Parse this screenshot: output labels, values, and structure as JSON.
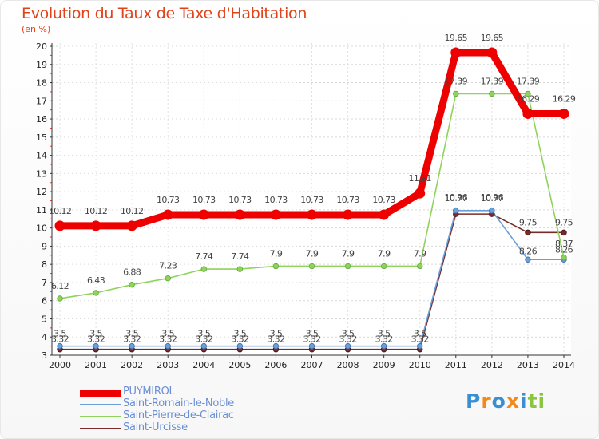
{
  "chart_data": {
    "type": "line",
    "title": "Evolution du Taux de Taxe d'Habitation",
    "ylabel": "(en %)",
    "xlabel": "",
    "ylim": [
      3,
      20
    ],
    "y_ticks": [
      "3",
      "4",
      "5",
      "6",
      "7",
      "8",
      "9",
      "10",
      "11",
      "12",
      "13",
      "14",
      "15",
      "16",
      "17",
      "18",
      "19",
      "20"
    ],
    "x": [
      "2000",
      "2001",
      "2002",
      "2003",
      "2004",
      "2005",
      "2006",
      "2007",
      "2008",
      "2009",
      "2010",
      "2011",
      "2012",
      "2013",
      "2014"
    ],
    "legend_position": "bottom-left",
    "series": [
      {
        "name": "PUYMIROL",
        "color": "#ee0000",
        "values": [
          10.12,
          10.12,
          10.12,
          10.73,
          10.73,
          10.73,
          10.73,
          10.73,
          10.73,
          10.73,
          11.91,
          19.65,
          19.65,
          16.29,
          16.29
        ],
        "labels": [
          "10.12",
          "10.12",
          "10.12",
          "10.73",
          "10.73",
          "10.73",
          "10.73",
          "10.73",
          "10.73",
          "10.73",
          "11.91",
          "19.65",
          "19.65",
          "16.29",
          "16.29"
        ]
      },
      {
        "name": "Saint-Romain-le-Noble",
        "color": "#6b9fd6",
        "values": [
          3.5,
          3.5,
          3.5,
          3.5,
          3.5,
          3.5,
          3.5,
          3.5,
          3.5,
          3.5,
          3.5,
          10.96,
          10.96,
          8.26,
          8.26
        ],
        "labels": [
          "3.5",
          "3.5",
          "3.5",
          "3.5",
          "3.5",
          "3.5",
          "3.5",
          "3.5",
          "3.5",
          "3.5",
          "3.5",
          "10.96",
          "10.96",
          "8.26",
          "8.26"
        ]
      },
      {
        "name": "Saint-Pierre-de-Clairac",
        "color": "#8fd35a",
        "values": [
          6.12,
          6.43,
          6.88,
          7.23,
          7.74,
          7.74,
          7.9,
          7.9,
          7.9,
          7.9,
          7.9,
          17.39,
          17.39,
          17.39,
          8.37
        ],
        "labels": [
          "6.12",
          "6.43",
          "6.88",
          "7.23",
          "7.74",
          "7.74",
          "7.9",
          "7.9",
          "7.9",
          "7.9",
          "7.9",
          "17.39",
          "17.39",
          "17.39",
          "8.37"
        ]
      },
      {
        "name": "Saint-Urcisse",
        "color": "#7a2a2a",
        "values": [
          3.32,
          3.32,
          3.32,
          3.32,
          3.32,
          3.32,
          3.32,
          3.32,
          3.32,
          3.32,
          3.32,
          10.77,
          10.77,
          9.75,
          9.75
        ],
        "labels": [
          "3.32",
          "3.32",
          "3.32",
          "3.32",
          "3.32",
          "3.32",
          "3.32",
          "3.32",
          "3.32",
          "3.32",
          "3.32",
          "10.77",
          "10.77",
          "9.75",
          "9.75"
        ]
      }
    ]
  },
  "logo": {
    "text": "Proxiti",
    "colors": [
      "#3a8fd1",
      "#f08a1c",
      "#3a8fd1",
      "#f08a1c",
      "#3a8fd1",
      "#8bc43f",
      "#8bc43f"
    ]
  }
}
